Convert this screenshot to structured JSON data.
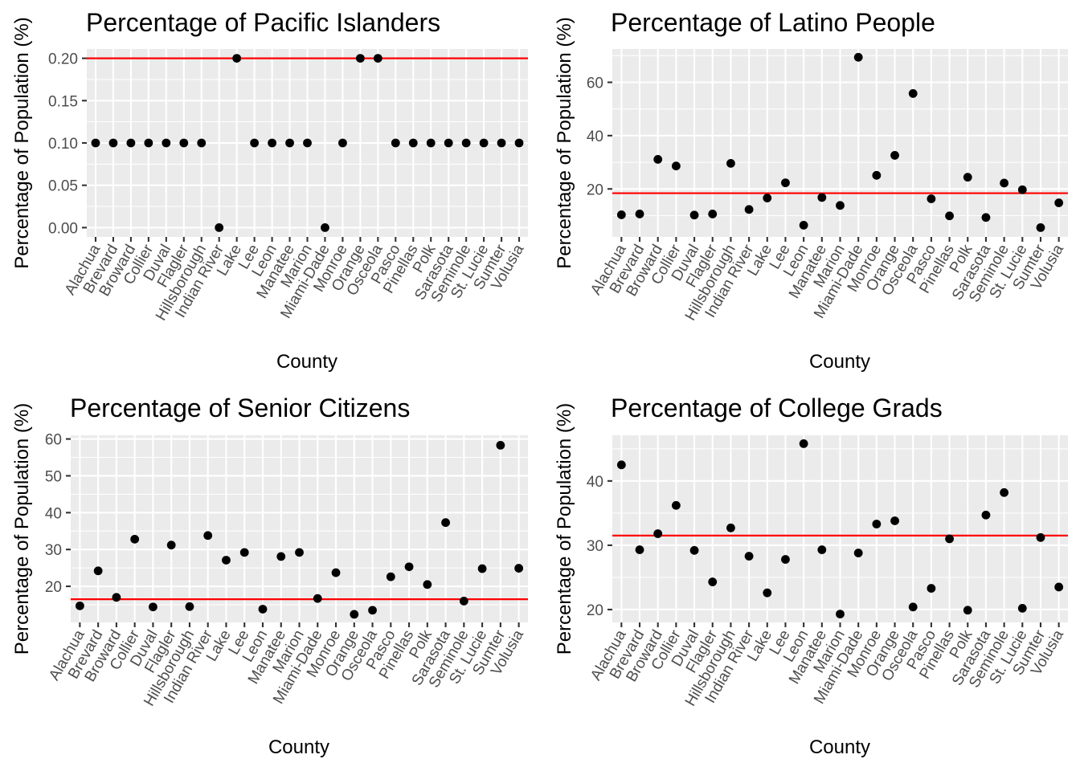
{
  "chart_data": [
    {
      "type": "scatter",
      "title": "Percentage of Pacific Islanders",
      "xlabel": "County",
      "ylabel": "Percentage of Population (%)",
      "categories": [
        "Alachua",
        "Brevard",
        "Broward",
        "Collier",
        "Duval",
        "Flagler",
        "Hillsborough",
        "Indian River",
        "Lake",
        "Lee",
        "Leon",
        "Manatee",
        "Marion",
        "Miami-Dade",
        "Monroe",
        "Orange",
        "Osceola",
        "Pasco",
        "Pinellas",
        "Polk",
        "Sarasota",
        "Seminole",
        "St. Lucie",
        "Sumter",
        "Volusia"
      ],
      "values": [
        0.1,
        0.1,
        0.1,
        0.1,
        0.1,
        0.1,
        0.1,
        0.0,
        0.2,
        0.1,
        0.1,
        0.1,
        0.1,
        0.0,
        0.1,
        0.2,
        0.2,
        0.1,
        0.1,
        0.1,
        0.1,
        0.1,
        0.1,
        0.1,
        0.1
      ],
      "reference_line": 0.2,
      "ylim": [
        -0.011,
        0.211
      ],
      "yticks": [
        0.0,
        0.05,
        0.1,
        0.15,
        0.2
      ],
      "ytick_labels": [
        "0.00",
        "0.05",
        "0.10",
        "0.15",
        "0.20"
      ],
      "grid": true
    },
    {
      "type": "scatter",
      "title": "Percentage of Latino People",
      "xlabel": "County",
      "ylabel": "Percentage of Population (%)",
      "categories": [
        "Alachua",
        "Brevard",
        "Broward",
        "Collier",
        "Duval",
        "Flagler",
        "Hillsborough",
        "Indian River",
        "Lake",
        "Lee",
        "Leon",
        "Manatee",
        "Marion",
        "Miami-Dade",
        "Monroe",
        "Orange",
        "Osceola",
        "Pasco",
        "Pinellas",
        "Polk",
        "Sarasota",
        "Seminole",
        "St. Lucie",
        "Sumter",
        "Volusia"
      ],
      "values": [
        10.3,
        10.6,
        31.1,
        28.6,
        10.2,
        10.6,
        29.6,
        12.3,
        16.6,
        22.3,
        6.4,
        16.8,
        13.8,
        69.4,
        25.1,
        32.6,
        55.8,
        16.3,
        9.9,
        24.4,
        9.3,
        22.2,
        19.7,
        5.5,
        14.8
      ],
      "reference_line": 18.4,
      "ylim": [
        2.0,
        72.5
      ],
      "yticks": [
        20,
        40,
        60
      ],
      "ytick_labels": [
        "20",
        "40",
        "60"
      ],
      "grid": true
    },
    {
      "type": "scatter",
      "title": "Percentage of Senior Citizens",
      "xlabel": "County",
      "ylabel": "Percentage of Population (%)",
      "categories": [
        "Alachua",
        "Brevard",
        "Broward",
        "Collier",
        "Duval",
        "Flagler",
        "Hillsborough",
        "Indian River",
        "Lake",
        "Lee",
        "Leon",
        "Manatee",
        "Marion",
        "Miami-Dade",
        "Monroe",
        "Orange",
        "Osceola",
        "Pasco",
        "Pinellas",
        "Polk",
        "Sarasota",
        "Seminole",
        "St. Lucie",
        "Sumter",
        "Volusia"
      ],
      "values": [
        14.7,
        24.2,
        17.0,
        32.8,
        14.4,
        31.2,
        14.5,
        33.8,
        27.1,
        29.2,
        13.8,
        28.1,
        29.2,
        16.7,
        23.7,
        12.4,
        13.5,
        22.6,
        25.3,
        20.5,
        37.3,
        16.0,
        24.8,
        58.3,
        24.9
      ],
      "reference_line": 16.5,
      "ylim": [
        10.2,
        61.0
      ],
      "yticks": [
        20,
        30,
        40,
        50,
        60
      ],
      "ytick_labels": [
        "20",
        "30",
        "40",
        "50",
        "60"
      ],
      "grid": true
    },
    {
      "type": "scatter",
      "title": "Percentage of College Grads",
      "xlabel": "County",
      "ylabel": "Percentage of Population (%)",
      "categories": [
        "Alachua",
        "Brevard",
        "Broward",
        "Collier",
        "Duval",
        "Flagler",
        "Hillsborough",
        "Indian River",
        "Lake",
        "Lee",
        "Leon",
        "Manatee",
        "Marion",
        "Miami-Dade",
        "Monroe",
        "Orange",
        "Osceola",
        "Pasco",
        "Pinellas",
        "Polk",
        "Sarasota",
        "Seminole",
        "St. Lucie",
        "Sumter",
        "Volusia"
      ],
      "values": [
        42.5,
        29.3,
        31.8,
        36.2,
        29.2,
        24.3,
        32.7,
        28.3,
        22.6,
        27.8,
        45.8,
        29.3,
        19.3,
        28.8,
        33.3,
        33.8,
        20.4,
        23.3,
        31.0,
        19.9,
        34.7,
        38.2,
        20.2,
        31.2,
        23.5
      ],
      "reference_line": 31.5,
      "ylim": [
        18.0,
        47.1
      ],
      "yticks": [
        20,
        30,
        40
      ],
      "ytick_labels": [
        "20",
        "30",
        "40"
      ],
      "grid": true
    }
  ]
}
